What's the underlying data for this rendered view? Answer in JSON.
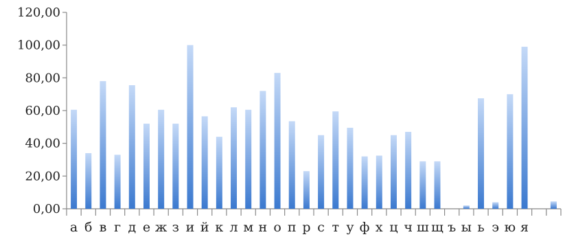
{
  "chart_data": {
    "type": "bar",
    "title": "",
    "xlabel": "",
    "ylabel": "",
    "ylim": [
      0,
      120
    ],
    "yticks": [
      0,
      20,
      40,
      60,
      80,
      100,
      120
    ],
    "ytick_labels": [
      "0,00",
      "20,00",
      "40,00",
      "60,00",
      "80,00",
      "100,00",
      "120,00"
    ],
    "grid": false,
    "legend": "none",
    "categories": [
      "а",
      "б",
      "в",
      "г",
      "д",
      "е",
      "ж",
      "з",
      "и",
      "й",
      "к",
      "л",
      "м",
      "н",
      "о",
      "п",
      "р",
      "с",
      "т",
      "у",
      "ф",
      "х",
      "ц",
      "ч",
      "ш",
      "щ",
      "ъ",
      "ы",
      "ь",
      "э",
      "ю",
      "я",
      "",
      ""
    ],
    "values": [
      60.5,
      34,
      78,
      33,
      75.5,
      52,
      60.5,
      52,
      100,
      56.5,
      44,
      62,
      60.5,
      72,
      83,
      53.5,
      23,
      45,
      59.5,
      49.5,
      32,
      32.5,
      45,
      47,
      29,
      29,
      0,
      2,
      67.5,
      4,
      70,
      99,
      0,
      4.5
    ],
    "colors": {
      "bar_top": "#c4d9f7",
      "bar_bottom": "#3b79cf",
      "axis": "#888888"
    }
  }
}
